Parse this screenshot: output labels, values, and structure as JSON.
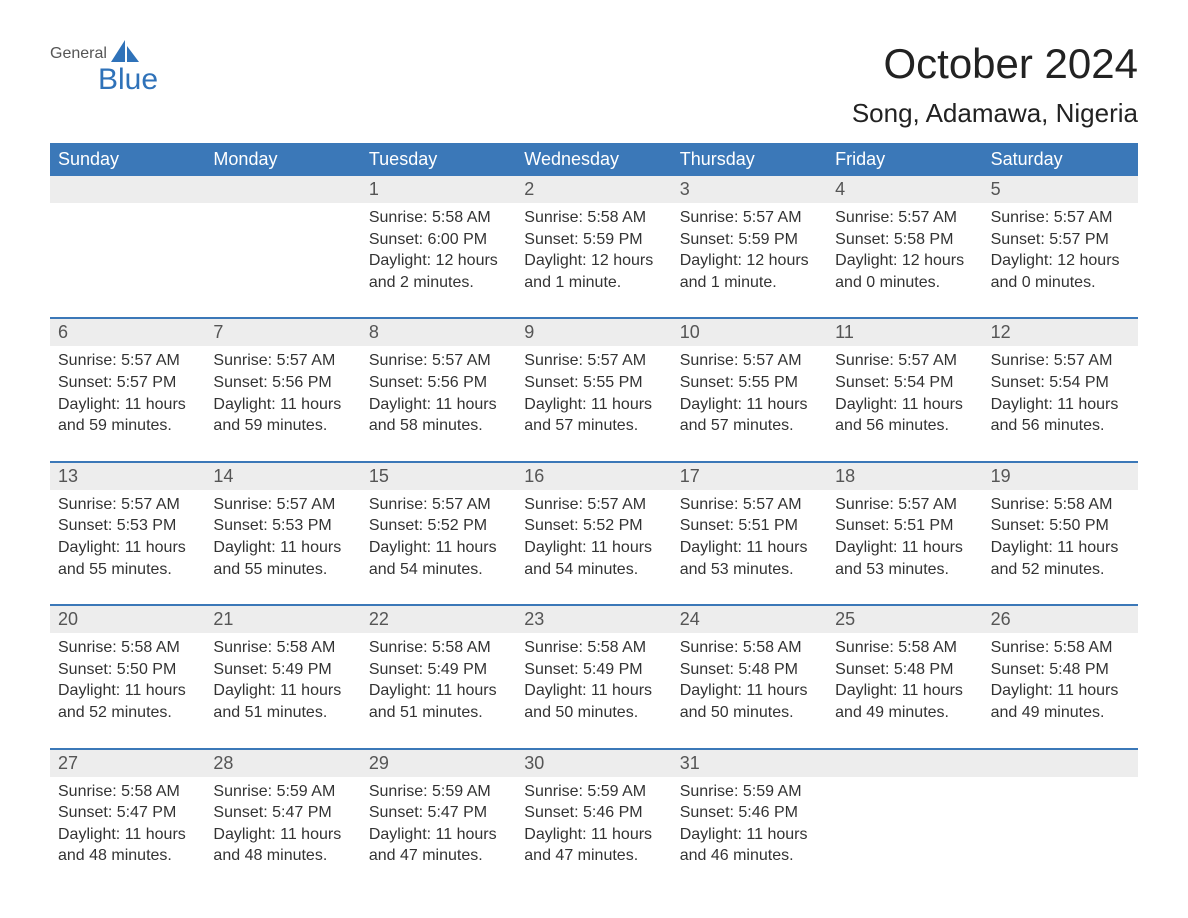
{
  "logo": {
    "word1": "General",
    "word2": "Blue",
    "accent_color": "#2f72b9",
    "text_color": "#555555"
  },
  "title": "October 2024",
  "location": "Song, Adamawa, Nigeria",
  "colors": {
    "header_bg": "#3b78b8",
    "header_text": "#ffffff",
    "daynum_bg": "#ededed",
    "body_text": "#333333",
    "separator": "#3b78b8",
    "background": "#ffffff"
  },
  "typography": {
    "body_font": "Arial",
    "title_fontsize": 42,
    "location_fontsize": 26,
    "header_fontsize": 18,
    "daynum_fontsize": 18,
    "details_fontsize": 16
  },
  "layout": {
    "columns": 7,
    "rows": 5,
    "cell_min_height": 96
  },
  "day_names": [
    "Sunday",
    "Monday",
    "Tuesday",
    "Wednesday",
    "Thursday",
    "Friday",
    "Saturday"
  ],
  "weeks": [
    {
      "days": [
        {
          "num": "",
          "sunrise": "",
          "sunset": "",
          "daylight1": "",
          "daylight2": ""
        },
        {
          "num": "",
          "sunrise": "",
          "sunset": "",
          "daylight1": "",
          "daylight2": ""
        },
        {
          "num": "1",
          "sunrise": "Sunrise: 5:58 AM",
          "sunset": "Sunset: 6:00 PM",
          "daylight1": "Daylight: 12 hours",
          "daylight2": "and 2 minutes."
        },
        {
          "num": "2",
          "sunrise": "Sunrise: 5:58 AM",
          "sunset": "Sunset: 5:59 PM",
          "daylight1": "Daylight: 12 hours",
          "daylight2": "and 1 minute."
        },
        {
          "num": "3",
          "sunrise": "Sunrise: 5:57 AM",
          "sunset": "Sunset: 5:59 PM",
          "daylight1": "Daylight: 12 hours",
          "daylight2": "and 1 minute."
        },
        {
          "num": "4",
          "sunrise": "Sunrise: 5:57 AM",
          "sunset": "Sunset: 5:58 PM",
          "daylight1": "Daylight: 12 hours",
          "daylight2": "and 0 minutes."
        },
        {
          "num": "5",
          "sunrise": "Sunrise: 5:57 AM",
          "sunset": "Sunset: 5:57 PM",
          "daylight1": "Daylight: 12 hours",
          "daylight2": "and 0 minutes."
        }
      ]
    },
    {
      "days": [
        {
          "num": "6",
          "sunrise": "Sunrise: 5:57 AM",
          "sunset": "Sunset: 5:57 PM",
          "daylight1": "Daylight: 11 hours",
          "daylight2": "and 59 minutes."
        },
        {
          "num": "7",
          "sunrise": "Sunrise: 5:57 AM",
          "sunset": "Sunset: 5:56 PM",
          "daylight1": "Daylight: 11 hours",
          "daylight2": "and 59 minutes."
        },
        {
          "num": "8",
          "sunrise": "Sunrise: 5:57 AM",
          "sunset": "Sunset: 5:56 PM",
          "daylight1": "Daylight: 11 hours",
          "daylight2": "and 58 minutes."
        },
        {
          "num": "9",
          "sunrise": "Sunrise: 5:57 AM",
          "sunset": "Sunset: 5:55 PM",
          "daylight1": "Daylight: 11 hours",
          "daylight2": "and 57 minutes."
        },
        {
          "num": "10",
          "sunrise": "Sunrise: 5:57 AM",
          "sunset": "Sunset: 5:55 PM",
          "daylight1": "Daylight: 11 hours",
          "daylight2": "and 57 minutes."
        },
        {
          "num": "11",
          "sunrise": "Sunrise: 5:57 AM",
          "sunset": "Sunset: 5:54 PM",
          "daylight1": "Daylight: 11 hours",
          "daylight2": "and 56 minutes."
        },
        {
          "num": "12",
          "sunrise": "Sunrise: 5:57 AM",
          "sunset": "Sunset: 5:54 PM",
          "daylight1": "Daylight: 11 hours",
          "daylight2": "and 56 minutes."
        }
      ]
    },
    {
      "days": [
        {
          "num": "13",
          "sunrise": "Sunrise: 5:57 AM",
          "sunset": "Sunset: 5:53 PM",
          "daylight1": "Daylight: 11 hours",
          "daylight2": "and 55 minutes."
        },
        {
          "num": "14",
          "sunrise": "Sunrise: 5:57 AM",
          "sunset": "Sunset: 5:53 PM",
          "daylight1": "Daylight: 11 hours",
          "daylight2": "and 55 minutes."
        },
        {
          "num": "15",
          "sunrise": "Sunrise: 5:57 AM",
          "sunset": "Sunset: 5:52 PM",
          "daylight1": "Daylight: 11 hours",
          "daylight2": "and 54 minutes."
        },
        {
          "num": "16",
          "sunrise": "Sunrise: 5:57 AM",
          "sunset": "Sunset: 5:52 PM",
          "daylight1": "Daylight: 11 hours",
          "daylight2": "and 54 minutes."
        },
        {
          "num": "17",
          "sunrise": "Sunrise: 5:57 AM",
          "sunset": "Sunset: 5:51 PM",
          "daylight1": "Daylight: 11 hours",
          "daylight2": "and 53 minutes."
        },
        {
          "num": "18",
          "sunrise": "Sunrise: 5:57 AM",
          "sunset": "Sunset: 5:51 PM",
          "daylight1": "Daylight: 11 hours",
          "daylight2": "and 53 minutes."
        },
        {
          "num": "19",
          "sunrise": "Sunrise: 5:58 AM",
          "sunset": "Sunset: 5:50 PM",
          "daylight1": "Daylight: 11 hours",
          "daylight2": "and 52 minutes."
        }
      ]
    },
    {
      "days": [
        {
          "num": "20",
          "sunrise": "Sunrise: 5:58 AM",
          "sunset": "Sunset: 5:50 PM",
          "daylight1": "Daylight: 11 hours",
          "daylight2": "and 52 minutes."
        },
        {
          "num": "21",
          "sunrise": "Sunrise: 5:58 AM",
          "sunset": "Sunset: 5:49 PM",
          "daylight1": "Daylight: 11 hours",
          "daylight2": "and 51 minutes."
        },
        {
          "num": "22",
          "sunrise": "Sunrise: 5:58 AM",
          "sunset": "Sunset: 5:49 PM",
          "daylight1": "Daylight: 11 hours",
          "daylight2": "and 51 minutes."
        },
        {
          "num": "23",
          "sunrise": "Sunrise: 5:58 AM",
          "sunset": "Sunset: 5:49 PM",
          "daylight1": "Daylight: 11 hours",
          "daylight2": "and 50 minutes."
        },
        {
          "num": "24",
          "sunrise": "Sunrise: 5:58 AM",
          "sunset": "Sunset: 5:48 PM",
          "daylight1": "Daylight: 11 hours",
          "daylight2": "and 50 minutes."
        },
        {
          "num": "25",
          "sunrise": "Sunrise: 5:58 AM",
          "sunset": "Sunset: 5:48 PM",
          "daylight1": "Daylight: 11 hours",
          "daylight2": "and 49 minutes."
        },
        {
          "num": "26",
          "sunrise": "Sunrise: 5:58 AM",
          "sunset": "Sunset: 5:48 PM",
          "daylight1": "Daylight: 11 hours",
          "daylight2": "and 49 minutes."
        }
      ]
    },
    {
      "days": [
        {
          "num": "27",
          "sunrise": "Sunrise: 5:58 AM",
          "sunset": "Sunset: 5:47 PM",
          "daylight1": "Daylight: 11 hours",
          "daylight2": "and 48 minutes."
        },
        {
          "num": "28",
          "sunrise": "Sunrise: 5:59 AM",
          "sunset": "Sunset: 5:47 PM",
          "daylight1": "Daylight: 11 hours",
          "daylight2": "and 48 minutes."
        },
        {
          "num": "29",
          "sunrise": "Sunrise: 5:59 AM",
          "sunset": "Sunset: 5:47 PM",
          "daylight1": "Daylight: 11 hours",
          "daylight2": "and 47 minutes."
        },
        {
          "num": "30",
          "sunrise": "Sunrise: 5:59 AM",
          "sunset": "Sunset: 5:46 PM",
          "daylight1": "Daylight: 11 hours",
          "daylight2": "and 47 minutes."
        },
        {
          "num": "31",
          "sunrise": "Sunrise: 5:59 AM",
          "sunset": "Sunset: 5:46 PM",
          "daylight1": "Daylight: 11 hours",
          "daylight2": "and 46 minutes."
        },
        {
          "num": "",
          "sunrise": "",
          "sunset": "",
          "daylight1": "",
          "daylight2": ""
        },
        {
          "num": "",
          "sunrise": "",
          "sunset": "",
          "daylight1": "",
          "daylight2": ""
        }
      ]
    }
  ]
}
